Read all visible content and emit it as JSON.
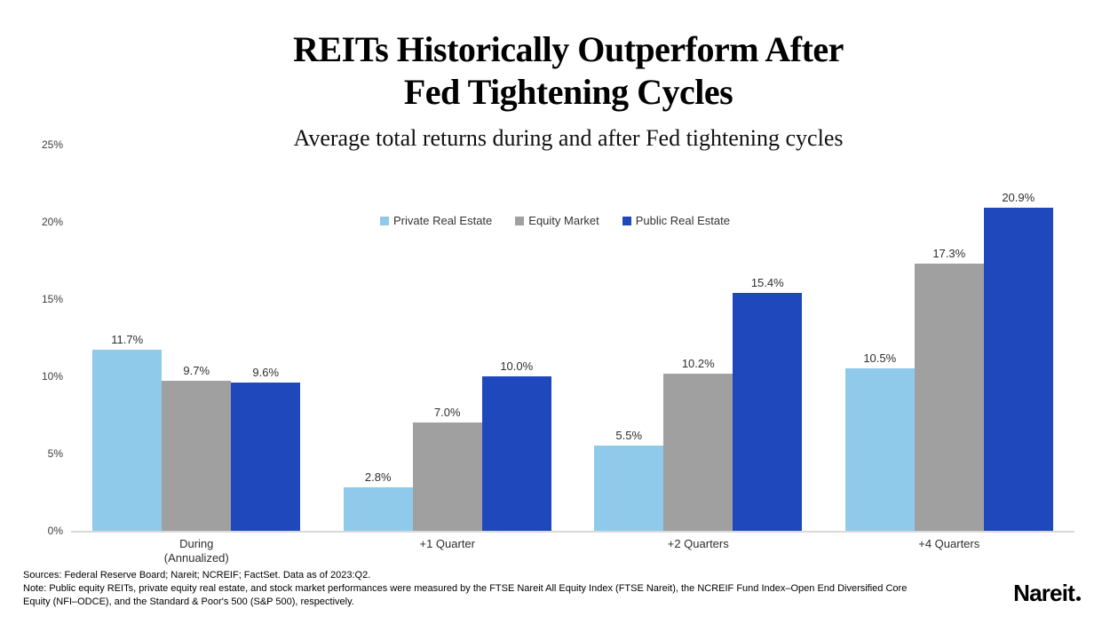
{
  "title": {
    "line1": "REITs Historically Outperform After",
    "line2": "Fed Tightening Cycles"
  },
  "subtitle": "Average total returns during and after Fed tightening cycles",
  "chart_data": {
    "type": "bar",
    "title": "REITs Historically Outperform After Fed Tightening Cycles",
    "subtitle": "Average total returns during and after Fed tightening cycles",
    "categories": [
      {
        "label": "During",
        "sublabel": "(Annualized)"
      },
      {
        "label": "+1 Quarter",
        "sublabel": ""
      },
      {
        "label": "+2 Quarters",
        "sublabel": ""
      },
      {
        "label": "+4 Quarters",
        "sublabel": ""
      }
    ],
    "series": [
      {
        "name": "Private Real Estate",
        "color": "#8FCAEB",
        "values": [
          11.7,
          2.8,
          5.5,
          10.5
        ]
      },
      {
        "name": "Equity Market",
        "color": "#A0A0A0",
        "values": [
          9.7,
          7.0,
          10.2,
          17.3
        ]
      },
      {
        "name": "Public Real Estate",
        "color": "#1E48BC",
        "values": [
          9.6,
          10.0,
          15.4,
          20.9
        ]
      }
    ],
    "value_label_suffix": "%",
    "y_axis": {
      "min": 0,
      "max": 25,
      "ticks": [
        "0%",
        "5%",
        "10%",
        "15%",
        "20%",
        "25%"
      ]
    },
    "legend_position": "top-center",
    "grid": false,
    "baseline_color": "#D9D9D9"
  },
  "footer": {
    "sources": "Sources: Federal Reserve Board; Nareit; NCREIF; FactSet. Data as of 2023:Q2.",
    "note": "Note: Public equity REITs, private equity real estate, and stock market performances were measured by the FTSE Nareit All Equity Index (FTSE Nareit), the NCREIF Fund Index–Open End Diversified Core Equity (NFI–ODCE), and the Standard & Poor's 500 (S&P 500), respectively.",
    "logo": "Nareit"
  }
}
